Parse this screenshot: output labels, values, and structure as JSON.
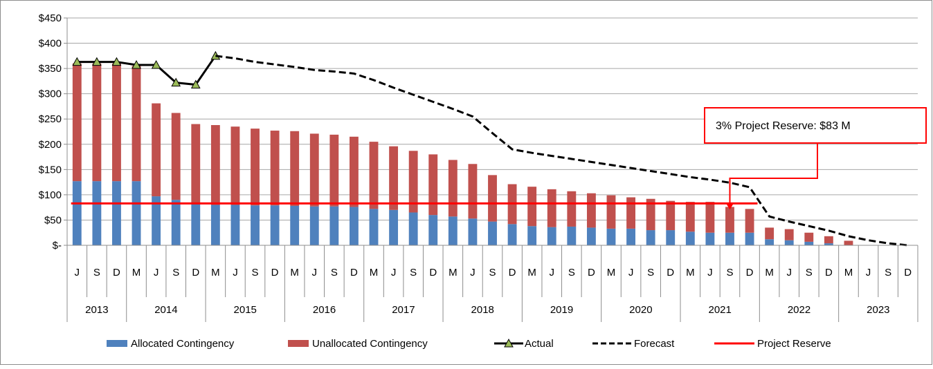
{
  "chart_data": {
    "type": "bar",
    "stacked": true,
    "categories": [
      "J",
      "S",
      "D",
      "M",
      "J",
      "S",
      "D",
      "M",
      "J",
      "S",
      "D",
      "M",
      "J",
      "S",
      "D",
      "M",
      "J",
      "S",
      "D",
      "M",
      "J",
      "S",
      "D",
      "M",
      "J",
      "S",
      "D",
      "M",
      "J",
      "S",
      "D",
      "M",
      "J",
      "S",
      "D",
      "M",
      "J",
      "S",
      "D",
      "M",
      "J",
      "S",
      "D"
    ],
    "years": [
      {
        "label": "2013",
        "months": [
          "J",
          "S",
          "D"
        ]
      },
      {
        "label": "2014",
        "months": [
          "M",
          "J",
          "S",
          "D"
        ]
      },
      {
        "label": "2015",
        "months": [
          "M",
          "J",
          "S",
          "D"
        ]
      },
      {
        "label": "2016",
        "months": [
          "M",
          "J",
          "S",
          "D"
        ]
      },
      {
        "label": "2017",
        "months": [
          "M",
          "J",
          "S",
          "D"
        ]
      },
      {
        "label": "2018",
        "months": [
          "M",
          "J",
          "S",
          "D"
        ]
      },
      {
        "label": "2019",
        "months": [
          "M",
          "J",
          "S",
          "D"
        ]
      },
      {
        "label": "2020",
        "months": [
          "M",
          "J",
          "S",
          "D"
        ]
      },
      {
        "label": "2021",
        "months": [
          "M",
          "J",
          "S",
          "D"
        ]
      },
      {
        "label": "2022",
        "months": [
          "M",
          "J",
          "S",
          "D"
        ]
      },
      {
        "label": "2023",
        "months": [
          "M",
          "J",
          "S",
          "D"
        ]
      }
    ],
    "series": [
      {
        "name": "Allocated Contingency",
        "kind": "bar",
        "color": "#4f81bd",
        "values": [
          127,
          127,
          127,
          127,
          97,
          90,
          82,
          80,
          80,
          79,
          79,
          78,
          77,
          77,
          76,
          72,
          70,
          65,
          60,
          57,
          53,
          47,
          42,
          38,
          36,
          37,
          35,
          33,
          33,
          30,
          30,
          27,
          25,
          25,
          25,
          12,
          10,
          7,
          4,
          0,
          0,
          0,
          0
        ]
      },
      {
        "name": "Unallocated Contingency",
        "kind": "bar",
        "color": "#c0504d",
        "values": [
          233,
          233,
          233,
          228,
          184,
          172,
          158,
          158,
          155,
          152,
          148,
          148,
          144,
          142,
          139,
          133,
          126,
          122,
          120,
          112,
          108,
          92,
          79,
          78,
          75,
          70,
          68,
          66,
          62,
          62,
          58,
          59,
          61,
          51,
          47,
          23,
          22,
          18,
          14,
          9,
          0,
          0,
          0
        ]
      },
      {
        "name": "Actual",
        "kind": "line",
        "color": "#000000",
        "marker_color": "#9bbb59",
        "values": [
          363,
          363,
          363,
          357,
          357,
          322,
          318,
          375,
          null,
          null,
          null,
          null,
          null,
          null,
          null,
          null,
          null,
          null,
          null,
          null,
          null,
          null,
          null,
          null,
          null,
          null,
          null,
          null,
          null,
          null,
          null,
          null,
          null,
          null,
          null,
          null,
          null,
          null,
          null,
          null,
          null,
          null,
          null
        ]
      },
      {
        "name": "Forecast",
        "kind": "dashed-line",
        "color": "#000000",
        "values": [
          null,
          null,
          null,
          null,
          null,
          null,
          null,
          375,
          370,
          363,
          358,
          353,
          347,
          344,
          340,
          327,
          312,
          298,
          284,
          270,
          255,
          222,
          190,
          183,
          177,
          171,
          165,
          159,
          153,
          147,
          141,
          135,
          130,
          124,
          115,
          57,
          47,
          38,
          29,
          18,
          10,
          4,
          0
        ]
      },
      {
        "name": "Project Reserve",
        "kind": "line",
        "color": "#ff0000",
        "values": [
          83,
          83,
          83,
          83,
          83,
          83,
          83,
          83,
          83,
          83,
          83,
          83,
          83,
          83,
          83,
          83,
          83,
          83,
          83,
          83,
          83,
          83,
          83,
          83,
          83,
          83,
          83,
          83,
          83,
          83,
          83,
          83,
          83,
          83,
          83,
          null,
          null,
          null,
          null,
          null,
          null,
          null,
          null
        ]
      }
    ],
    "yaxis": {
      "ylim": [
        0,
        450
      ],
      "ticks": [
        0,
        50,
        100,
        150,
        200,
        250,
        300,
        350,
        400,
        450
      ],
      "tick_labels": [
        "$-",
        "$50",
        "$100",
        "$150",
        "$200",
        "$250",
        "$300",
        "$350",
        "$400",
        "$450"
      ]
    },
    "grid": true,
    "legend_position": "bottom",
    "annotation": {
      "text": "3% Project Reserve: $83 M",
      "color": "#ff0000",
      "points_to_category_index": 33
    },
    "title": "",
    "xlabel": "",
    "ylabel": ""
  }
}
